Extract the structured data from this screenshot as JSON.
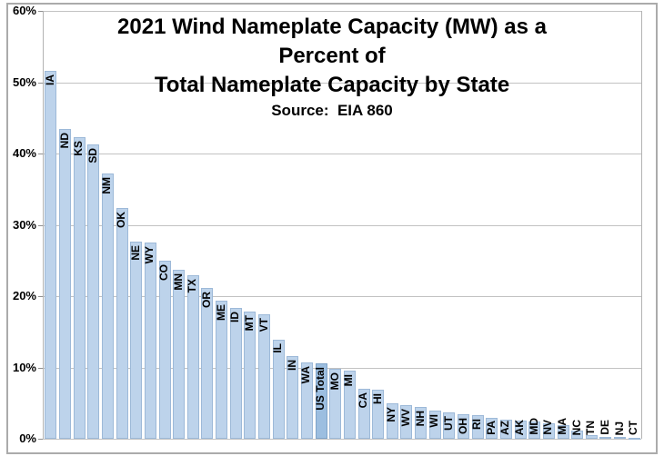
{
  "chart_data": {
    "type": "bar",
    "title_lines": [
      "2021 Wind Nameplate Capacity (MW) as a",
      "Percent of",
      "Total Nameplate Capacity by State"
    ],
    "source": "Source:  EIA 860",
    "xlabel": "",
    "ylabel": "",
    "ylim": [
      0,
      60
    ],
    "ytick_step": 10,
    "ytick_labels": [
      "0%",
      "10%",
      "20%",
      "30%",
      "40%",
      "50%",
      "60%"
    ],
    "grid": true,
    "legend": "none",
    "categories": [
      "IA",
      "ND",
      "KS",
      "SD",
      "NM",
      "OK",
      "NE",
      "WY",
      "CO",
      "MN",
      "TX",
      "OR",
      "ME",
      "ID",
      "MT",
      "VT",
      "IL",
      "IN",
      "WA",
      "US Total",
      "MO",
      "MI",
      "CA",
      "HI",
      "NY",
      "WV",
      "NH",
      "WI",
      "UT",
      "OH",
      "RI",
      "PA",
      "AZ",
      "AK",
      "MD",
      "NV",
      "MA",
      "NC",
      "TN",
      "DE",
      "NJ",
      "CT"
    ],
    "values": [
      51.6,
      43.4,
      42.3,
      41.3,
      37.2,
      32.3,
      27.7,
      27.5,
      25.0,
      23.7,
      22.9,
      21.2,
      19.4,
      18.3,
      17.9,
      17.4,
      13.9,
      11.6,
      10.7,
      10.6,
      9.8,
      9.5,
      7.0,
      6.9,
      5.0,
      4.7,
      4.5,
      4.0,
      3.7,
      3.4,
      3.3,
      2.9,
      2.7,
      2.6,
      2.4,
      2.2,
      1.9,
      1.2,
      0.5,
      0.3,
      0.2,
      0.1
    ],
    "highlight_category": "US Total",
    "colors": {
      "bar_fill": "#BDD3EB",
      "bar_border": "#9DB9D8",
      "highlight_fill": "#9CBEE0",
      "highlight_border": "#7FA3C8",
      "gridline": "#C2C2C2",
      "tick": "#8F8F8F",
      "axis": "#B3B3B3",
      "frame_border": "#A9A9A9",
      "text": "#000000"
    }
  }
}
